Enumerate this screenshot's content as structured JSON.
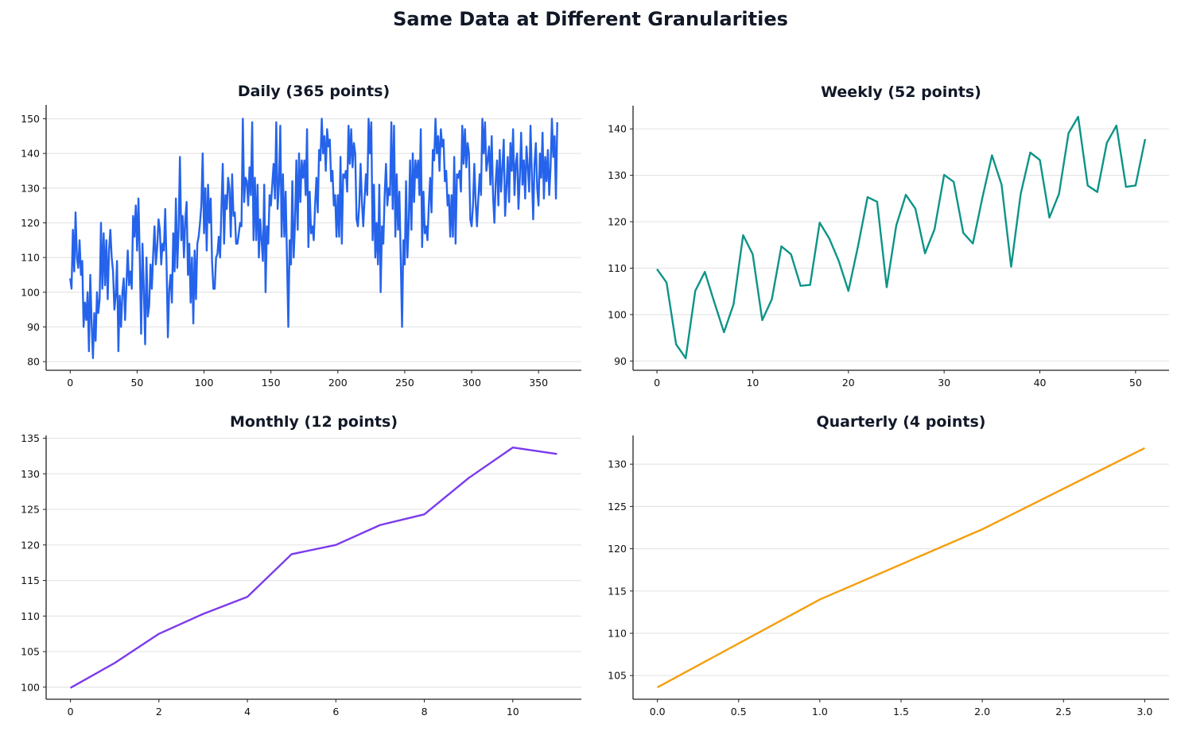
{
  "title": "Same Data at Different Granularities",
  "chart_data": [
    {
      "type": "line",
      "title": "Daily (365 points)",
      "color": "#2563eb",
      "xlim": [
        -18,
        382
      ],
      "ylim": [
        77.5,
        154
      ],
      "xticks": [
        0,
        50,
        100,
        150,
        200,
        250,
        300,
        350
      ],
      "yticks": [
        80,
        90,
        100,
        110,
        120,
        130,
        140,
        150
      ],
      "grid": "horizontal",
      "values": [
        104,
        101,
        118,
        106,
        123,
        110,
        107,
        115,
        105,
        109,
        90,
        97,
        92,
        100,
        83,
        105,
        91,
        81,
        94,
        86,
        100,
        94,
        98,
        120,
        101,
        117,
        102,
        115,
        98,
        112,
        118,
        110,
        106,
        95,
        99,
        109,
        83,
        99,
        90,
        100,
        104,
        92,
        102,
        112,
        102,
        106,
        101,
        122,
        116,
        125,
        112,
        127,
        110,
        88,
        114,
        101,
        85,
        110,
        93,
        96,
        108,
        101,
        111,
        119,
        108,
        113,
        121,
        118,
        108,
        114,
        112,
        124,
        108,
        87,
        101,
        105,
        97,
        117,
        106,
        127,
        107,
        118,
        139,
        115,
        122,
        110,
        121,
        126,
        105,
        114,
        97,
        110,
        91,
        112,
        98,
        114,
        116,
        120,
        125,
        140,
        117,
        130,
        112,
        131,
        120,
        127,
        109,
        101,
        101,
        110,
        111,
        116,
        110,
        124,
        137,
        114,
        128,
        124,
        133,
        130,
        116,
        134,
        122,
        123,
        114,
        114,
        117,
        120,
        119,
        150,
        126,
        133,
        132,
        125,
        136,
        128,
        149,
        115,
        133,
        115,
        131,
        110,
        121,
        115,
        109,
        131,
        100,
        119,
        114,
        128,
        125,
        131,
        137,
        127,
        149,
        124,
        131,
        148,
        116,
        134,
        116,
        129,
        110,
        90,
        115,
        108,
        132,
        110,
        120,
        138,
        118,
        140,
        126,
        138,
        133,
        138,
        128,
        147,
        113,
        129,
        117,
        119,
        115,
        125,
        133,
        123,
        141,
        138,
        150,
        140,
        145,
        135,
        147,
        142,
        144,
        132,
        135,
        125,
        128,
        116,
        128,
        116,
        139,
        114,
        134,
        133,
        135,
        129,
        148,
        137,
        147,
        136,
        143,
        140,
        121,
        119,
        125,
        137,
        126,
        119,
        127,
        134,
        128,
        150,
        140,
        149,
        115,
        131,
        110,
        120,
        108,
        131,
        100,
        119,
        114,
        128,
        137,
        125,
        130,
        128,
        149,
        124,
        148,
        116,
        134,
        118,
        129,
        110,
        90,
        115,
        108,
        132,
        110,
        120,
        138,
        118,
        140,
        126,
        138,
        133,
        138,
        128,
        147,
        113,
        129,
        117,
        119,
        115,
        125,
        133,
        123,
        141,
        138,
        150,
        140,
        145,
        135,
        147,
        142,
        144,
        132,
        135,
        125,
        128,
        116,
        128,
        116,
        139,
        114,
        134,
        133,
        135,
        129,
        148,
        137,
        147,
        136,
        143,
        140,
        121,
        119,
        125,
        137,
        126,
        119,
        127,
        134,
        128,
        150,
        140,
        149,
        135,
        138,
        142,
        131,
        145,
        128,
        120,
        132,
        138,
        125,
        141,
        129,
        136,
        144,
        122,
        130,
        139,
        126,
        143,
        135,
        147,
        128,
        137,
        140,
        124,
        133,
        146,
        131,
        138,
        127,
        142,
        136,
        129,
        148,
        134,
        121,
        137,
        143,
        130,
        125,
        140,
        133,
        146,
        127,
        139,
        132,
        141,
        128,
        136,
        150,
        139,
        145,
        127,
        149
      ]
    },
    {
      "type": "line",
      "title": "Weekly (52 points)",
      "color": "#0d9488",
      "xlim": [
        -2.5,
        53.5
      ],
      "ylim": [
        88,
        145
      ],
      "xticks": [
        0,
        10,
        20,
        30,
        40,
        50
      ],
      "yticks": [
        90,
        100,
        110,
        120,
        130,
        140
      ],
      "grid": "horizontal",
      "values": [
        109.8,
        106.9,
        93.6,
        90.6,
        105.1,
        109.2,
        102.6,
        96.2,
        102.2,
        117.1,
        113.0,
        98.8,
        103.3,
        114.7,
        113.0,
        106.2,
        106.4,
        119.8,
        116.4,
        111.5,
        105.1,
        114.7,
        125.3,
        124.3,
        105.9,
        119.2,
        125.8,
        122.8,
        113.2,
        118.4,
        130.1,
        128.6,
        117.6,
        115.3,
        125.2,
        134.3,
        128.0,
        110.3,
        126.0,
        134.9,
        133.3,
        120.9,
        126.0,
        139.1,
        142.6,
        127.8,
        126.4,
        137.0,
        140.7,
        127.5,
        127.8,
        137.8
      ]
    },
    {
      "type": "line",
      "title": "Monthly (12 points)",
      "color": "#7c3aed",
      "xlim": [
        -0.55,
        11.55
      ],
      "ylim": [
        98.3,
        135.4
      ],
      "xticks": [
        0,
        2,
        4,
        6,
        8,
        10
      ],
      "yticks": [
        100,
        105,
        110,
        115,
        120,
        125,
        130,
        135
      ],
      "grid": "horizontal",
      "values": [
        99.9,
        103.4,
        107.5,
        110.3,
        112.7,
        118.7,
        120.0,
        122.8,
        124.3,
        129.4,
        133.7,
        132.8
      ]
    },
    {
      "type": "line",
      "title": "Quarterly (4 points)",
      "color": "#f59e0b",
      "xlim": [
        -0.15,
        3.15
      ],
      "ylim": [
        102.2,
        133.4
      ],
      "xticks": [
        "0.0",
        "0.5",
        "1.0",
        "1.5",
        "2.0",
        "2.5",
        "3.0"
      ],
      "yticks": [
        105,
        110,
        115,
        120,
        125,
        130
      ],
      "grid": "horizontal",
      "values": [
        103.6,
        114.0,
        122.3,
        131.9
      ]
    }
  ]
}
